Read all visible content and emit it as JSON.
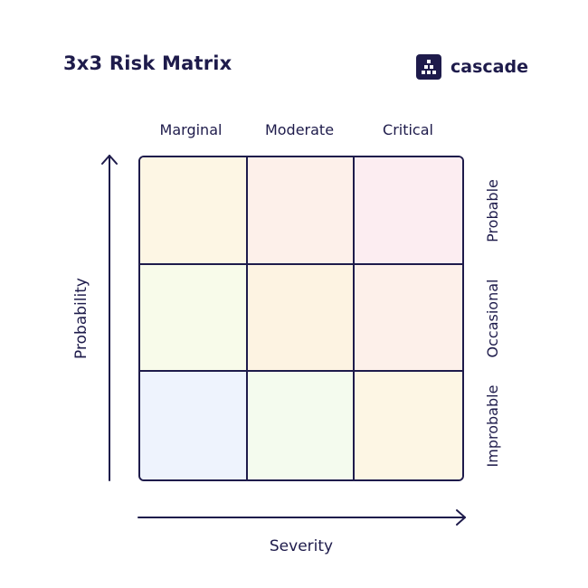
{
  "title": "3x3 Risk Matrix",
  "brand": {
    "name": "cascade",
    "logo_icon": "cascade-logo-icon"
  },
  "columns": [
    "Marginal",
    "Moderate",
    "Critical"
  ],
  "rows": [
    "Probable",
    "Occasional",
    "Improbable"
  ],
  "x_axis_label": "Severity",
  "y_axis_label": "Probability",
  "colors": {
    "ink": "#1e1b4b",
    "cells": [
      [
        "#fdf6e4",
        "#fdf0ea",
        "#fcedf1"
      ],
      [
        "#f8fbea",
        "#fdf3e2",
        "#fdf0ea"
      ],
      [
        "#eef3fd",
        "#f4fbee",
        "#fdf6e4"
      ]
    ]
  }
}
